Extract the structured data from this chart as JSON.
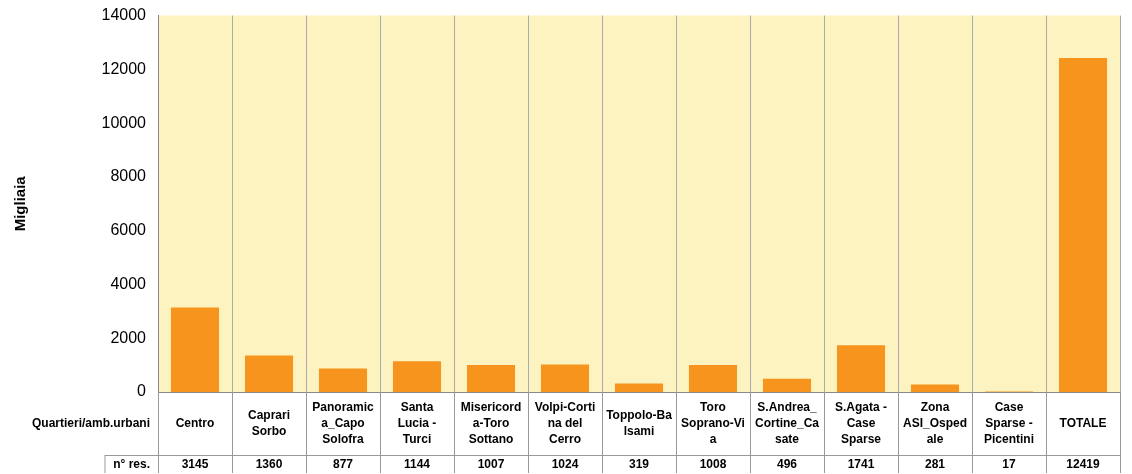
{
  "chart_data": {
    "type": "bar",
    "ylabel": "Migliaia",
    "xlabel": "Quartieri/amb.urbani",
    "categories": [
      "Centro",
      "Caprari Sorbo",
      "Panoramica_Capo Solofra",
      "Santa Lucia - Turci",
      "Misericorda-Toro Sottano",
      "Volpi-Cortina del Cerro",
      "Toppolo-Balsami",
      "Toro Soprano-Via",
      "S.Andrea_Cortine_Casate",
      "S.Agata - Case Sparse",
      "Zona ASI_Ospedale",
      "Case Sparse - Picentini",
      "TOTALE"
    ],
    "values": [
      3145,
      1360,
      877,
      1144,
      1007,
      1024,
      319,
      1008,
      496,
      1741,
      281,
      17,
      12419
    ],
    "color": "#f7941d",
    "ylim": [
      0,
      14000
    ],
    "yticks": [
      0,
      2000,
      4000,
      6000,
      8000,
      10000,
      12000,
      14000
    ],
    "grid": "x",
    "data_labels": true,
    "annotations": [
      "n° res."
    ]
  }
}
